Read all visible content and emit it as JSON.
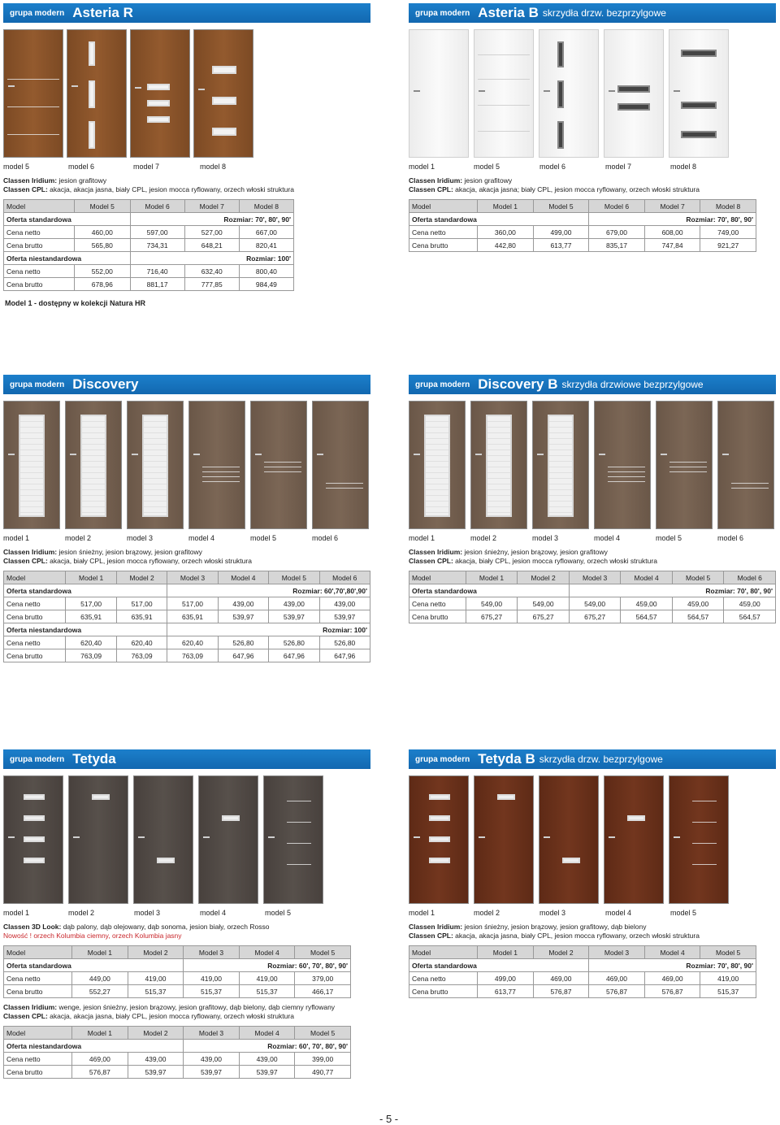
{
  "group_label": "grupa modern",
  "colors": {
    "band": "#1a78c2",
    "header_row": "#d6d6d6",
    "red_text": "#c8262b"
  },
  "sections": [
    {
      "id": "asteria-r",
      "title": "Asteria R",
      "subtitle": "",
      "models": [
        "model 5",
        "model 6",
        "model 7",
        "model 8"
      ],
      "desc": [
        {
          "label": "Classen Iridium:",
          "text": " jesion grafitowy",
          "red": false
        },
        {
          "label": "Classen CPL:",
          "text": " akacja, akacja jasna, biały CPL, jesion mocca ryflowany, orzech włoski struktura",
          "red": false
        }
      ],
      "tables": [
        {
          "header": [
            "Model",
            "Model 5",
            "Model 6",
            "Model 7",
            "Model 8"
          ],
          "rows": [
            {
              "type": "offer",
              "label": "Oferta standardowa",
              "size": "Rozmiar: 70', 80', 90'"
            },
            {
              "type": "price",
              "cells": [
                "Cena netto",
                "460,00",
                "597,00",
                "527,00",
                "667,00"
              ]
            },
            {
              "type": "price",
              "cells": [
                "Cena brutto",
                "565,80",
                "734,31",
                "648,21",
                "820,41"
              ]
            },
            {
              "type": "offer",
              "label": "Oferta niestandardowa",
              "size": "Rozmiar: 100'"
            },
            {
              "type": "price",
              "cells": [
                "Cena netto",
                "552,00",
                "716,40",
                "632,40",
                "800,40"
              ]
            },
            {
              "type": "price",
              "cells": [
                "Cena brutto",
                "678,96",
                "881,17",
                "777,85",
                "984,49"
              ]
            }
          ]
        }
      ]
    },
    {
      "id": "asteria-b",
      "title": "Asteria B",
      "subtitle": "skrzydła drzw. bezprzylgowe",
      "models": [
        "model 1",
        "model 5",
        "model 6",
        "model 7",
        "model 8"
      ],
      "desc": [
        {
          "label": "Classen Iridium:",
          "text": " jesion grafitowy",
          "red": false
        },
        {
          "label": "Classen CPL:",
          "text": " akacja, akacja jasna; biały CPL, jesion mocca ryflowany, orzech włoski struktura",
          "red": false
        }
      ],
      "tables": [
        {
          "header": [
            "Model",
            "Model 1",
            "Model 5",
            "Model 6",
            "Model 7",
            "Model 8"
          ],
          "rows": [
            {
              "type": "offer",
              "label": "Oferta standardowa",
              "size": "Rozmiar: 70', 80', 90'"
            },
            {
              "type": "price",
              "cells": [
                "Cena netto",
                "360,00",
                "499,00",
                "679,00",
                "608,00",
                "749,00"
              ]
            },
            {
              "type": "price",
              "cells": [
                "Cena brutto",
                "442,80",
                "613,77",
                "835,17",
                "747,84",
                "921,27"
              ]
            }
          ]
        }
      ]
    },
    {
      "id": "discovery",
      "title": "Discovery",
      "subtitle": "",
      "models": [
        "model 1",
        "model 2",
        "model 3",
        "model 4",
        "model 5",
        "model 6"
      ],
      "desc": [
        {
          "label": "Classen Iridium:",
          "text": " jesion śnieżny, jesion brązowy, jesion grafitowy",
          "red": false
        },
        {
          "label": "Classen CPL:",
          "text": " akacja, biały CPL, jesion mocca ryflowany, orzech włoski struktura",
          "red": false
        }
      ],
      "tables": [
        {
          "header": [
            "Model",
            "Model 1",
            "Model 2",
            "Model 3",
            "Model 4",
            "Model 5",
            "Model 6"
          ],
          "rows": [
            {
              "type": "offer",
              "label": "Oferta standardowa",
              "size": "Rozmiar: 60',70',80',90'"
            },
            {
              "type": "price",
              "cells": [
                "Cena netto",
                "517,00",
                "517,00",
                "517,00",
                "439,00",
                "439,00",
                "439,00"
              ]
            },
            {
              "type": "price",
              "cells": [
                "Cena brutto",
                "635,91",
                "635,91",
                "635,91",
                "539,97",
                "539,97",
                "539,97"
              ]
            },
            {
              "type": "offer",
              "label": "Oferta niestandardowa",
              "size": "Rozmiar: 100'"
            },
            {
              "type": "price",
              "cells": [
                "Cena netto",
                "620,40",
                "620,40",
                "620,40",
                "526,80",
                "526,80",
                "526,80"
              ]
            },
            {
              "type": "price",
              "cells": [
                "Cena brutto",
                "763,09",
                "763,09",
                "763,09",
                "647,96",
                "647,96",
                "647,96"
              ]
            }
          ]
        }
      ]
    },
    {
      "id": "discovery-b",
      "title": "Discovery B",
      "subtitle": "skrzydła drzwiowe bezprzylgowe",
      "models": [
        "model 1",
        "model 2",
        "model 3",
        "model 4",
        "model 5",
        "model 6"
      ],
      "desc": [
        {
          "label": "Classen Iridium:",
          "text": " jesion śnieżny, jesion brązowy, jesion grafitowy",
          "red": false
        },
        {
          "label": "Classen CPL:",
          "text": " akacja, biały CPL, jesion mocca ryflowany, orzech włoski struktura",
          "red": false
        }
      ],
      "tables": [
        {
          "header": [
            "Model",
            "Model 1",
            "Model 2",
            "Model 3",
            "Model 4",
            "Model 5",
            "Model 6"
          ],
          "rows": [
            {
              "type": "offer",
              "label": "Oferta standardowa",
              "size": "Rozmiar: 70', 80', 90'"
            },
            {
              "type": "price",
              "cells": [
                "Cena netto",
                "549,00",
                "549,00",
                "549,00",
                "459,00",
                "459,00",
                "459,00"
              ]
            },
            {
              "type": "price",
              "cells": [
                "Cena brutto",
                "675,27",
                "675,27",
                "675,27",
                "564,57",
                "564,57",
                "564,57"
              ]
            }
          ]
        }
      ]
    },
    {
      "id": "tetyda",
      "title": "Tetyda",
      "subtitle": "",
      "models": [
        "model 1",
        "model 2",
        "model 3",
        "model 4",
        "model 5"
      ],
      "desc": [
        {
          "label": "Classen 3D Look:",
          "text": " dąb palony, dąb olejowany, dąb sonoma, jesion biały, orzech Rosso",
          "red": false
        },
        {
          "label": "Nowość !",
          "text": " orzech Kolumbia ciemny, orzech Kolumbia jasny",
          "red": true
        }
      ],
      "tables": [
        {
          "header": [
            "Model",
            "Model 1",
            "Model 2",
            "Model 3",
            "Model 4",
            "Model 5"
          ],
          "rows": [
            {
              "type": "offer",
              "label": "Oferta standardowa",
              "size": "Rozmiar: 60', 70', 80', 90'"
            },
            {
              "type": "price",
              "cells": [
                "Cena netto",
                "449,00",
                "419,00",
                "419,00",
                "419,00",
                "379,00"
              ]
            },
            {
              "type": "price",
              "cells": [
                "Cena brutto",
                "552,27",
                "515,37",
                "515,37",
                "515,37",
                "466,17"
              ]
            }
          ]
        }
      ],
      "desc2": [
        {
          "label": "Classen Iridium:",
          "text": " wenge, jesion śnieżny, jesion brązowy, jesion grafitowy, dąb bielony, dąb ciemny ryflowany",
          "red": false
        },
        {
          "label": "Classen CPL:",
          "text": " akacja, akacja jasna, biały CPL, jesion mocca ryflowany, orzech włoski struktura",
          "red": false
        }
      ],
      "tables2": [
        {
          "header": [
            "Model",
            "Model 1",
            "Model 2",
            "Model 3",
            "Model 4",
            "Model 5"
          ],
          "rows": [
            {
              "type": "offer",
              "label": "Oferta niestandardowa",
              "size": "Rozmiar: 60', 70', 80', 90'"
            },
            {
              "type": "price",
              "cells": [
                "Cena netto",
                "469,00",
                "439,00",
                "439,00",
                "439,00",
                "399,00"
              ]
            },
            {
              "type": "price",
              "cells": [
                "Cena brutto",
                "576,87",
                "539,97",
                "539,97",
                "539,97",
                "490,77"
              ]
            }
          ]
        }
      ]
    },
    {
      "id": "tetyda-b",
      "title": "Tetyda B",
      "subtitle": "skrzydła drzw. bezprzylgowe",
      "models": [
        "model 1",
        "model 2",
        "model 3",
        "model 4",
        "model 5"
      ],
      "desc": [
        {
          "label": "Classen Iridium:",
          "text": " jesion śnieżny, jesion brązowy, jesion grafitowy, dąb bielony",
          "red": false
        },
        {
          "label": "Classen CPL:",
          "text": " akacja, akacja jasna, biały CPL, jesion mocca ryflowany, orzech włoski struktura",
          "red": false
        }
      ],
      "tables": [
        {
          "header": [
            "Model",
            "Model 1",
            "Model 2",
            "Model 3",
            "Model 4",
            "Model 5"
          ],
          "rows": [
            {
              "type": "offer",
              "label": "Oferta standardowa",
              "size": "Rozmiar: 70', 80', 90'"
            },
            {
              "type": "price",
              "cells": [
                "Cena netto",
                "499,00",
                "469,00",
                "469,00",
                "469,00",
                "419,00"
              ]
            },
            {
              "type": "price",
              "cells": [
                "Cena brutto",
                "613,77",
                "576,87",
                "576,87",
                "576,87",
                "515,37"
              ]
            }
          ]
        }
      ]
    }
  ],
  "note": "Model 1 - dostępny w kolekcji Natura HR",
  "page_number": "- 5 -"
}
